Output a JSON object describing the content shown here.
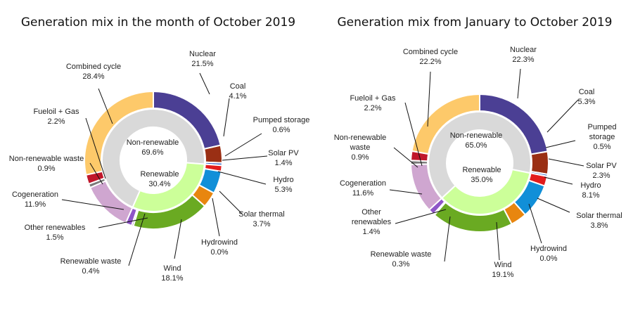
{
  "chart_data": [
    {
      "type": "pie",
      "title": "Generation mix in the month of October 2019",
      "inner_ring": [
        {
          "name": "Non-renewable",
          "value": 69.6,
          "label": "69.6%"
        },
        {
          "name": "Renewable",
          "value": 30.4,
          "label": "30.4%"
        }
      ],
      "outer_ring": [
        {
          "name": "Nuclear",
          "value": 21.5,
          "label": "21.5%",
          "color": "#4b3f94"
        },
        {
          "name": "Coal",
          "value": 4.1,
          "label": "4.1%",
          "color": "#9a2f14"
        },
        {
          "name": "Pumped storage",
          "value": 0.6,
          "label": "0.6%",
          "color": "#3567c8"
        },
        {
          "name": "Solar PV",
          "value": 1.4,
          "label": "1.4%",
          "color": "#e21c1c"
        },
        {
          "name": "Hydro",
          "value": 5.3,
          "label": "5.3%",
          "color": "#118fd8"
        },
        {
          "name": "Solar thermal",
          "value": 3.7,
          "label": "3.7%",
          "color": "#e8860f"
        },
        {
          "name": "Hydrowind",
          "value": 0.0,
          "label": "0.0%",
          "color": "#1f5fa0"
        },
        {
          "name": "Wind",
          "value": 18.1,
          "label": "18.1%",
          "color": "#6aaa22"
        },
        {
          "name": "Renewable waste",
          "value": 0.4,
          "label": "0.4%",
          "color": "#5a3a8a"
        },
        {
          "name": "Other renewables",
          "value": 1.5,
          "label": "1.5%",
          "color": "#8e55c8"
        },
        {
          "name": "Cogeneration",
          "value": 11.9,
          "label": "11.9%",
          "color": "#cfa6d0"
        },
        {
          "name": "Non-renewable waste",
          "value": 0.9,
          "label": "0.9%",
          "color": "#7a7a7a"
        },
        {
          "name": "Fueloil + Gas",
          "value": 2.2,
          "label": "2.2%",
          "color": "#c0172b"
        },
        {
          "name": "Combined cycle",
          "value": 28.4,
          "label": "28.4%",
          "color": "#fdc96a"
        }
      ]
    },
    {
      "type": "pie",
      "title": "Generation mix from January to October 2019",
      "inner_ring": [
        {
          "name": "Non-renewable",
          "value": 65.0,
          "label": "65.0%"
        },
        {
          "name": "Renewable",
          "value": 35.0,
          "label": "35.0%"
        }
      ],
      "outer_ring": [
        {
          "name": "Nuclear",
          "value": 22.3,
          "label": "22.3%",
          "color": "#4b3f94"
        },
        {
          "name": "Coal",
          "value": 5.3,
          "label": "5.3%",
          "color": "#9a2f14"
        },
        {
          "name": "Pumped storage",
          "value": 0.5,
          "label": "0.5%",
          "color": "#3567c8"
        },
        {
          "name": "Solar PV",
          "value": 2.3,
          "label": "2.3%",
          "color": "#e21c1c"
        },
        {
          "name": "Hydro",
          "value": 8.1,
          "label": "8.1%",
          "color": "#118fd8"
        },
        {
          "name": "Solar thermal",
          "value": 3.8,
          "label": "3.8%",
          "color": "#e8860f"
        },
        {
          "name": "Hydrowind",
          "value": 0.0,
          "label": "0.0%",
          "color": "#1f5fa0"
        },
        {
          "name": "Wind",
          "value": 19.1,
          "label": "19.1%",
          "color": "#6aaa22"
        },
        {
          "name": "Renewable waste",
          "value": 0.3,
          "label": "0.3%",
          "color": "#5a3a8a"
        },
        {
          "name": "Other renewables",
          "value": 1.4,
          "label": "1.4%",
          "color": "#8e55c8"
        },
        {
          "name": "Cogeneration",
          "value": 11.6,
          "label": "11.6%",
          "color": "#cfa6d0"
        },
        {
          "name": "Non-renewable waste",
          "value": 0.9,
          "label": "0.9%",
          "color": "#7a7a7a"
        },
        {
          "name": "Fueloil + Gas",
          "value": 2.2,
          "label": "2.2%",
          "color": "#c0172b"
        },
        {
          "name": "Combined cycle",
          "value": 22.2,
          "label": "22.2%",
          "color": "#fdc96a"
        }
      ]
    }
  ],
  "colors": {
    "inner_non_renewable": "#d9d9d9",
    "inner_renewable": "#ccff99",
    "leader_line": "#111111",
    "separator": "#ffffff"
  }
}
